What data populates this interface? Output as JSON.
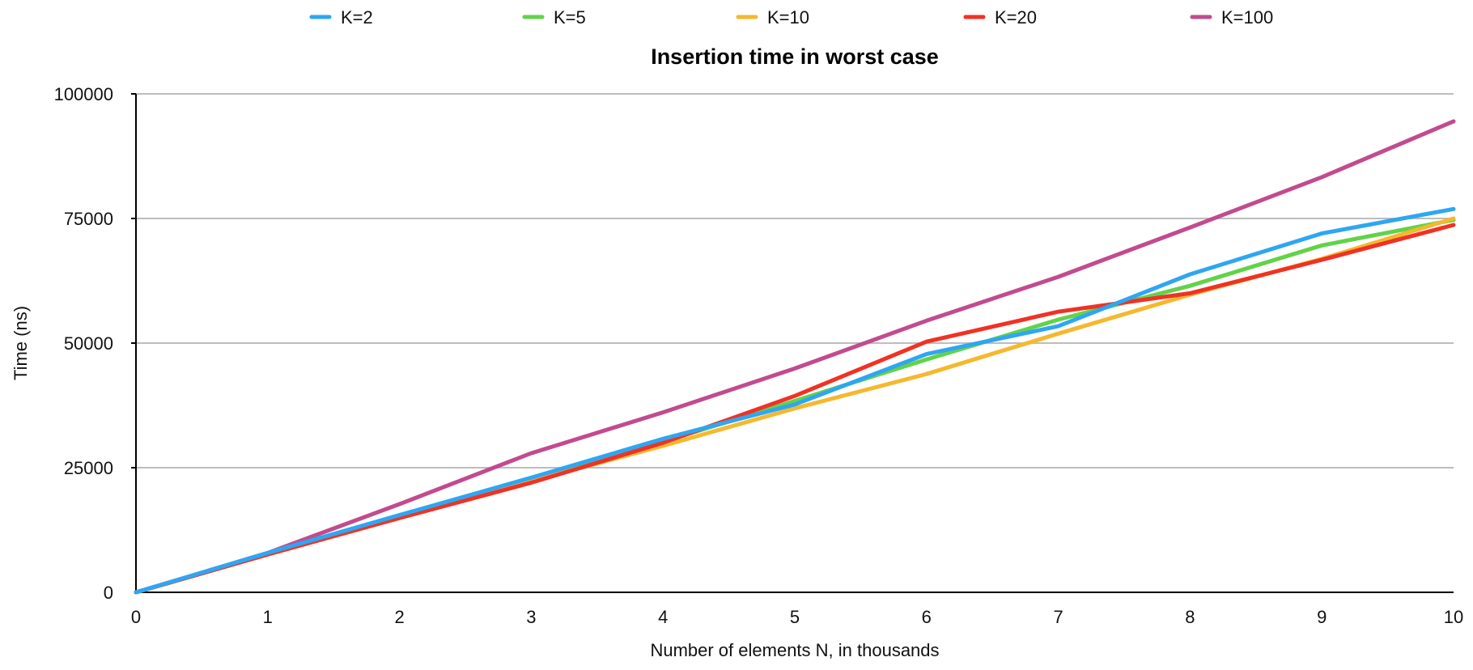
{
  "chart_data": {
    "type": "line",
    "title": "Insertion time in worst case",
    "xlabel": "Number of elements N, in thousands",
    "ylabel": "Time (ns)",
    "x": [
      0,
      1,
      2,
      3,
      4,
      5,
      6,
      7,
      8,
      9,
      10
    ],
    "xlim": [
      0,
      10
    ],
    "ylim": [
      0,
      100000
    ],
    "x_ticks": [
      "0",
      "1",
      "2",
      "3",
      "4",
      "5",
      "6",
      "7",
      "8",
      "9",
      "10"
    ],
    "y_ticks": [
      "0",
      "25000",
      "50000",
      "75000",
      "100000"
    ],
    "y_tick_values": [
      0,
      25000,
      50000,
      75000,
      100000
    ],
    "grid": "horizontal",
    "legend_position": "top",
    "series": [
      {
        "name": "K=2",
        "color": "#2ea6f2",
        "values": [
          0,
          7900,
          15500,
          23000,
          30800,
          37700,
          47800,
          53400,
          63800,
          72000,
          76900
        ]
      },
      {
        "name": "K=5",
        "color": "#62d348",
        "values": [
          0,
          7600,
          15000,
          22300,
          30200,
          38400,
          46700,
          54700,
          61500,
          69600,
          74700
        ]
      },
      {
        "name": "K=10",
        "color": "#f5b82e",
        "values": [
          0,
          7600,
          15000,
          22300,
          29400,
          36900,
          43800,
          51900,
          59700,
          66900,
          75000
        ]
      },
      {
        "name": "K=20",
        "color": "#f03224",
        "values": [
          0,
          7600,
          14900,
          22000,
          30000,
          39400,
          50300,
          56300,
          60000,
          66700,
          73700
        ]
      },
      {
        "name": "K=100",
        "color": "#c24b8e",
        "values": [
          0,
          7900,
          17700,
          27900,
          36100,
          44900,
          54500,
          63300,
          73200,
          83300,
          94500
        ]
      }
    ]
  }
}
